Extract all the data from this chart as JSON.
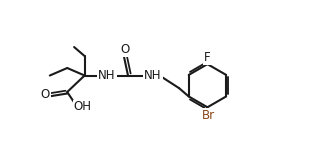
{
  "background": "#ffffff",
  "line_color": "#1a1a1a",
  "Br_color": "#8B4513",
  "bond_lw": 1.5,
  "font_size": 8.5,
  "fig_width": 3.16,
  "fig_height": 1.54,
  "dpi": 100,
  "xlim": [
    0,
    10.5
  ],
  "ylim": [
    0,
    5.0
  ]
}
